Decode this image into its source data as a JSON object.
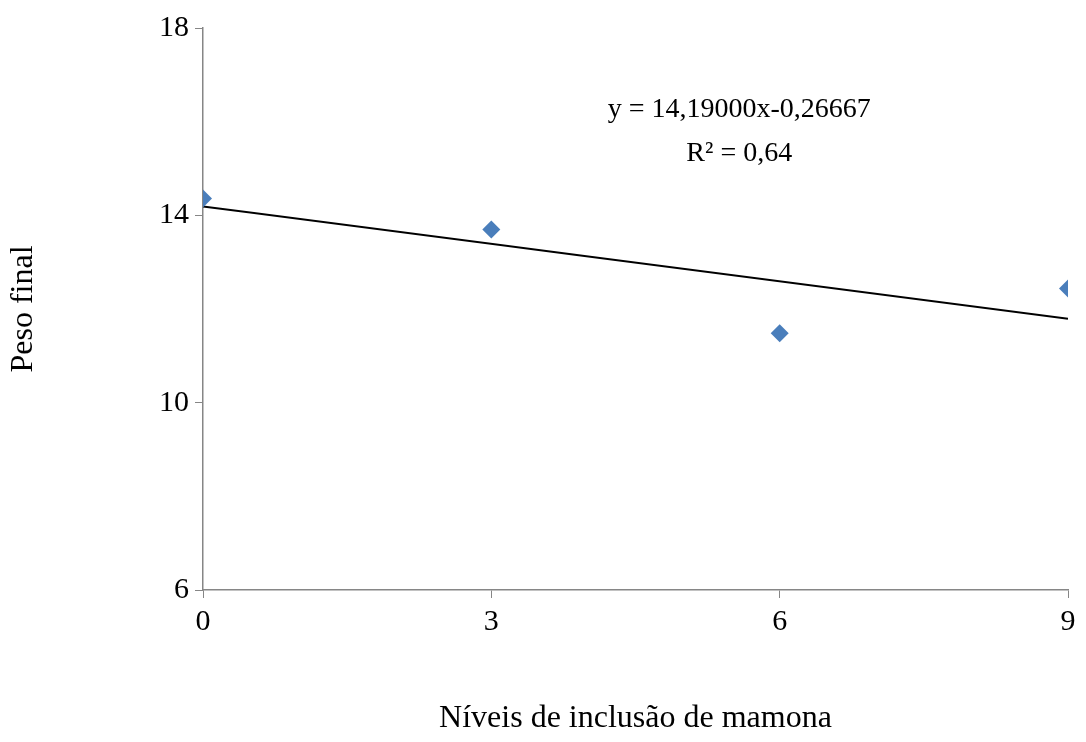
{
  "chart_data": {
    "type": "scatter",
    "xlabel": "Níveis de inclusão de mamona",
    "ylabel": "Peso final",
    "series": [
      {
        "color": "#4a7ebb",
        "marker": "diamond",
        "x": [
          0,
          3,
          6,
          9
        ],
        "values": [
          14.36,
          13.7,
          11.48,
          12.44
        ]
      },
      {
        "type": "line",
        "color": "#000000",
        "marker": "none",
        "line_style": "solid",
        "x": [
          0,
          9
        ],
        "values": [
          14.19,
          11.79
        ]
      }
    ],
    "xlim": [
      0,
      9
    ],
    "xticks": [
      0,
      3,
      6,
      9
    ],
    "ylim": [
      6,
      18
    ],
    "yticks": [
      6,
      10,
      14,
      18
    ],
    "grid": false,
    "legend": false,
    "annotations": [
      "y = 14,19000x-0,26667",
      "R² = 0,64"
    ]
  }
}
